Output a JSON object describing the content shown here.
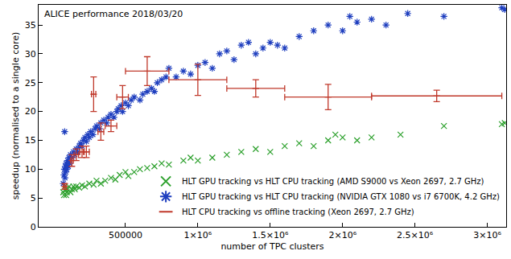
{
  "chart_data": {
    "type": "scatter",
    "title": "ALICE performance 2018/03/20",
    "x_label": "number of TPC clusters",
    "y_label": "speedup (normalised to a single core)",
    "xlim": [
      -100000,
      3130000
    ],
    "ylim": [
      0,
      38.5
    ],
    "xticks": [
      500000,
      {
        "value": 1000000,
        "label": "1×10⁶"
      },
      {
        "value": 1500000,
        "label": "1.5×10⁶"
      },
      {
        "value": 2000000,
        "label": "2×10⁶"
      },
      {
        "value": 2500000,
        "label": "2.5×10⁶"
      },
      {
        "value": 3000000,
        "label": "3×10⁶"
      }
    ],
    "yticks": [
      0,
      5,
      10,
      15,
      20,
      25,
      30,
      35
    ],
    "grid": false,
    "legend": "bottom-right",
    "series": [
      {
        "name": "HLT GPU tracking vs HLT CPU tracking (AMD S9000 vs Xeon 2697, 2.7 GHz)",
        "color": "#2ca02c",
        "marker": "x",
        "x": [
          70000,
          75000,
          80000,
          85000,
          90000,
          95000,
          100000,
          110000,
          120000,
          130000,
          140000,
          150000,
          160000,
          180000,
          200000,
          220000,
          250000,
          280000,
          300000,
          330000,
          360000,
          400000,
          430000,
          460000,
          500000,
          520000,
          560000,
          600000,
          650000,
          700000,
          750000,
          800000,
          900000,
          950000,
          1000000,
          1100000,
          1200000,
          1300000,
          1400000,
          1500000,
          1600000,
          1700000,
          1800000,
          1900000,
          1950000,
          2000000,
          2100000,
          2200000,
          2400000,
          2700000,
          3100000,
          3120000
        ],
        "values": [
          6,
          5.5,
          7,
          6.5,
          5.5,
          6,
          6.5,
          7,
          6,
          6.5,
          7,
          6.5,
          7,
          6.8,
          7.2,
          7,
          7.5,
          7.3,
          8,
          7.5,
          8,
          8.5,
          8.2,
          9,
          9.5,
          8.8,
          9.5,
          10,
          10.2,
          10.5,
          11,
          10.8,
          11.5,
          12,
          11.5,
          12,
          12.5,
          13,
          13.5,
          13,
          14,
          14.5,
          14,
          15,
          16,
          15.5,
          15,
          15.5,
          16,
          17.5,
          17.8,
          18
        ]
      },
      {
        "name": "HLT GPU tracking vs HLT CPU tracking (NVIDIA GTX 1080 vs i7 6700K, 4.2 GHz)",
        "color": "#1f3fbf",
        "marker": "asterisk",
        "x": [
          70000,
          75000,
          78000,
          80000,
          82000,
          85000,
          88000,
          90000,
          95000,
          100000,
          105000,
          110000,
          115000,
          120000,
          130000,
          140000,
          150000,
          160000,
          170000,
          180000,
          190000,
          200000,
          210000,
          220000,
          230000,
          240000,
          250000,
          260000,
          275000,
          290000,
          300000,
          320000,
          330000,
          350000,
          370000,
          380000,
          400000,
          420000,
          440000,
          450000,
          470000,
          480000,
          500000,
          520000,
          540000,
          560000,
          600000,
          620000,
          650000,
          680000,
          700000,
          720000,
          750000,
          780000,
          800000,
          850000,
          900000,
          950000,
          1000000,
          1050000,
          1100000,
          1150000,
          1200000,
          1250000,
          1300000,
          1350000,
          1400000,
          1450000,
          1500000,
          1550000,
          1600000,
          1700000,
          1800000,
          1900000,
          2000000,
          2050000,
          2100000,
          2200000,
          2300000,
          2450000,
          2700000,
          3100000,
          3120000
        ],
        "values": [
          7.5,
          9,
          10,
          16.5,
          8.5,
          10.5,
          9.5,
          11,
          10,
          11.5,
          10.5,
          12,
          11,
          12.5,
          12,
          13,
          12.5,
          13.5,
          13,
          14,
          14.5,
          14,
          15,
          15.5,
          14.8,
          16,
          15.5,
          16.5,
          16,
          17,
          17.5,
          17,
          18,
          18.5,
          18,
          19,
          19.5,
          19,
          20,
          20.5,
          21,
          20,
          21.5,
          21,
          22,
          22.5,
          22,
          23,
          23.5,
          24,
          23.5,
          25,
          25.5,
          26,
          27.5,
          26,
          27,
          26.5,
          28,
          28.5,
          27.5,
          30,
          30.5,
          29,
          31.5,
          32,
          30,
          31,
          32,
          31.5,
          31,
          33,
          34,
          35,
          34,
          36.5,
          35.5,
          36,
          35,
          37,
          36.5,
          38,
          37.7
        ]
      },
      {
        "name": "HLT CPU tracking vs offline tracking (Xeon 2697, 2.7 GHz)",
        "color": "#c0392b",
        "marker": "line-ew",
        "x": [
          80000,
          130000,
          160000,
          200000,
          230000,
          280000,
          330000,
          400000,
          480000,
          650000,
          1000000,
          1400000,
          1900000,
          2650000
        ],
        "values": [
          7,
          11.5,
          12.5,
          13,
          13,
          23,
          16.5,
          17.5,
          22.5,
          27,
          25.5,
          24,
          22.5,
          22.7
        ],
        "x_error": [
          10000,
          10000,
          15000,
          15000,
          20000,
          15000,
          20000,
          40000,
          40000,
          150000,
          200000,
          200000,
          300000,
          450000
        ],
        "y_error": [
          0.5,
          1,
          1,
          1,
          1,
          3,
          1.5,
          1,
          2,
          2.5,
          2.7,
          1.5,
          2.2,
          1
        ]
      }
    ]
  }
}
